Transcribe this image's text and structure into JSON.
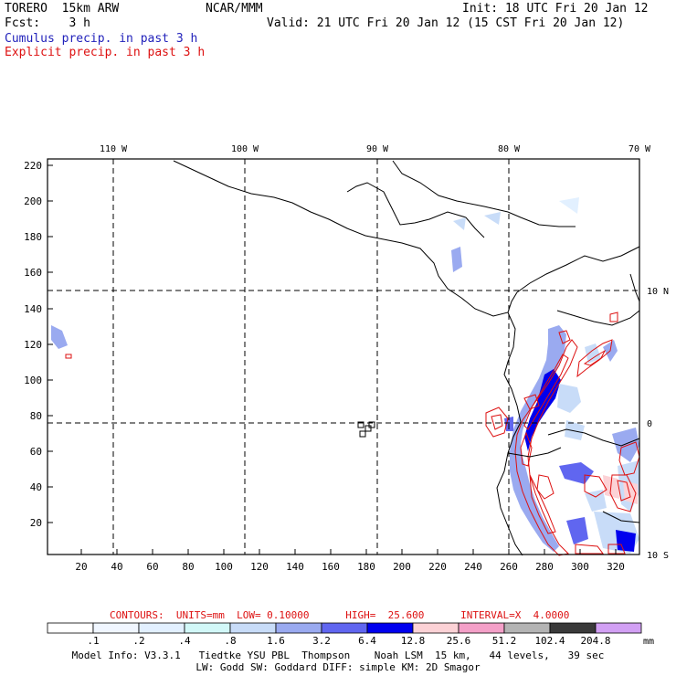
{
  "header": {
    "model": "TORERO  15km ARW",
    "center": "NCAR/MMM",
    "init": "Init: 18 UTC Fri 20 Jan 12",
    "fcst": "Fcst:    3 h",
    "valid": "Valid: 21 UTC Fri 20 Jan 12 (15 CST Fri 20 Jan 12)",
    "field1": "Cumulus precip. in past 3 h",
    "field2": "Explicit precip. in past 3 h"
  },
  "map": {
    "lon_labels": [
      "110 W",
      "100 W",
      "90 W",
      "80 W",
      "70 W"
    ],
    "lat_labels": [
      "10 N",
      "0",
      "10 S"
    ],
    "y_ticks": [
      "220",
      "200",
      "180",
      "160",
      "140",
      "120",
      "100",
      "80",
      "60",
      "40",
      "20"
    ],
    "x_ticks": [
      "20",
      "40",
      "60",
      "80",
      "100",
      "120",
      "140",
      "160",
      "180",
      "200",
      "220",
      "240",
      "260",
      "280",
      "300",
      "320"
    ]
  },
  "contours": {
    "text": "CONTOURS:  UNITS=mm  LOW= 0.10000      HIGH=  25.600      INTERVAL=X  4.0000"
  },
  "colorbar": {
    "labels": [
      ".1",
      ".2",
      ".4",
      ".8",
      "1.6",
      "3.2",
      "6.4",
      "12.8",
      "25.6",
      "51.2",
      "102.4",
      "204.8"
    ],
    "unit": "mm",
    "colors": [
      "#ffffff",
      "#f0f6ff",
      "#e2f0ff",
      "#d2f8f8",
      "#c8dcf8",
      "#9aaaf0",
      "#6066f0",
      "#0000ee",
      "#fcd2d6",
      "#f4a0c8",
      "#b4b4b4",
      "#3a3a3a",
      "#d2a0f4"
    ]
  },
  "footer": {
    "line1": "Model Info: V3.3.1   Tiedtke YSU PBL  Thompson    Noah LSM  15 km,   44 levels,   39 sec",
    "line2": "LW: Godd SW: Goddard DIFF: simple KM: 2D Smagor"
  }
}
